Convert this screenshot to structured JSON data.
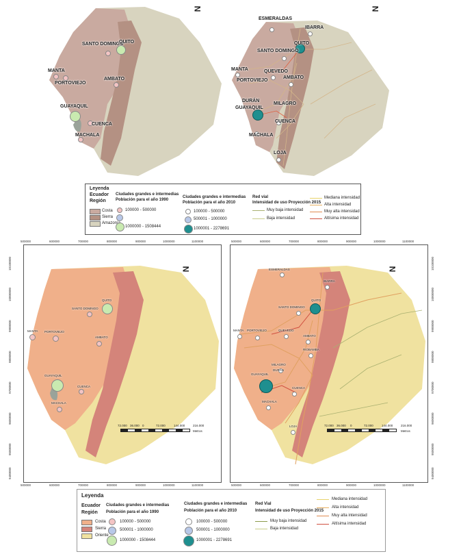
{
  "top": {
    "north": "N",
    "map1_cities": [
      "SANTO DOMINGO",
      "QUITO",
      "MANTA",
      "PORTOVIEJO",
      "AMBATO",
      "GUAYAQUIL",
      "CUENCA",
      "MACHALA"
    ],
    "map2_cities": [
      "ESMERALDAS",
      "IBARRA",
      "QUITO",
      "SANTO DOMINGO",
      "MANTA",
      "QUEVEDO",
      "PORTOVIEJO",
      "AMBATO",
      "MILAGRO",
      "DURÁN",
      "GUAYAQUIL",
      "CUENCA",
      "MACHALA",
      "LOJA"
    ],
    "legend": {
      "title": "Leyenda",
      "country": "Ecuador",
      "region_title": "Región",
      "regions": [
        "Costa",
        "Sierra",
        "Amazonía"
      ],
      "col1_title": "Ciudades grandes e intermedias",
      "col1_sub": "Población para el año 1990",
      "col1_items": [
        "100000 - 500000",
        "",
        "1000000 - 1508444"
      ],
      "col2_title": "Ciudades grandes e intermedias",
      "col2_sub": "Población para el año 2010",
      "col2_items": [
        "100000 - 500000",
        "500001 - 1000000",
        "1000001 - 2278691"
      ],
      "col3_title": "Red vial",
      "col3_sub": "Intensidad de uso Proyección 2015",
      "col3_left": [
        "Muy baja intensidad",
        "Baja intensidad"
      ],
      "col3_right": [
        "Mediana intensidad",
        "Alta intensidad",
        "Muy alta intensidad",
        "Altísima intensidad"
      ]
    }
  },
  "bottom": {
    "north": "N",
    "map1_cities": [
      "SANTO DOMINGO",
      "QUITO",
      "MANTA",
      "PORTOVIEJO",
      "AMBATO",
      "GUAYAQUIL",
      "CUENCA",
      "MACHALA"
    ],
    "map2_cities": [
      "ESMERALDAS",
      "IBARRA",
      "SANTO DOMINGO",
      "QUITO",
      "MANTA",
      "PORTOVIEJO",
      "QUEVEDO",
      "AMBATO",
      "RIOBAMBA",
      "MILAGRO",
      "DURÁN",
      "GUAYAQUIL",
      "CUENCA",
      "MACHALA",
      "LOJA"
    ],
    "x_ticks": [
      "500000",
      "600000",
      "700000",
      "800000",
      "900000",
      "1000000",
      "1100000"
    ],
    "y_ticks": [
      "10100000",
      "10000000",
      "9900000",
      "9800000",
      "9700000",
      "9600000",
      "9500000",
      "9400000"
    ],
    "scale_labels": [
      "72.000",
      "36.000",
      "0",
      "72.000",
      "144.000",
      "216.000"
    ],
    "scale_unit": "Metros",
    "legend": {
      "title": "Leyenda",
      "country": "Ecuador",
      "region_title": "Región",
      "regions": [
        "Costa",
        "Sierra",
        "Oriente"
      ],
      "col1_title": "Ciudades grandes e intermedias",
      "col1_sub": "Población para el año 1990",
      "col1_items": [
        "100000 - 500000",
        "500001 - 1000000",
        "1000000 - 1508444"
      ],
      "col2_title": "Ciudades grandes e intermedias",
      "col2_sub": "Población para el año 2010",
      "col2_items": [
        "100000 - 500000",
        "500001 - 1000000",
        "1000001 - 2278691"
      ],
      "col3_title": "Red Vial",
      "col3_sub": "Intensidad de uso Proyección 2015",
      "col3_left": [
        "Muy baja intensidad",
        "Baja intensidad"
      ],
      "col3_right": [
        "Mediana intensidad",
        "Alta intensidad",
        "Muy alta intensidad",
        "Altísima intensidad"
      ]
    }
  },
  "colors": {
    "costa_top": "#c9aaa0",
    "sierra_top": "#b49183",
    "amazonia_top": "#d8d4bf",
    "costa_bot": "#f0b08a",
    "sierra_bot": "#d4847a",
    "oriente_bot": "#f0e2a0",
    "city_small": "#f3c4c4",
    "city_mid": "#b8c8e8",
    "city_big": "#c9eab0",
    "city_teal": "#1f8f8f",
    "road_low": "#b8c27a",
    "road_mid": "#e8d36a",
    "road_high": "#e07a4a"
  }
}
